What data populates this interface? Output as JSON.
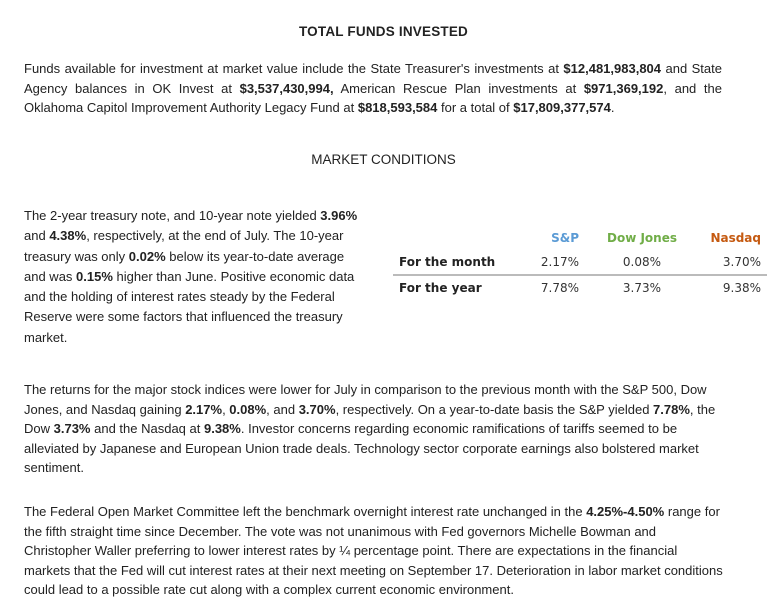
{
  "title": "TOTAL FUNDS INVESTED",
  "funds": [
    "Funds available for investment at market value include the State Treasurer's investments at ",
    "$12,481,983,804",
    " and State Agency balances in OK Invest at ",
    "$3,537,430,994,",
    " American Rescue Plan investments at ",
    "$971,369,192",
    ", and the Oklahoma Capitol Improvement Authority Legacy Fund at ",
    "$818,593,584",
    " for a total of ",
    "$17,809,377,574",
    "."
  ],
  "market_title": "MARKET CONDITIONS",
  "treasury": [
    "The 2-year treasury note, and 10-year note yielded ",
    "3.96%",
    " and ",
    "4.38%",
    ", respectively, at the end of July. The 10-year treasury was only ",
    "0.02%",
    " below its year-to-date average and was ",
    "0.15%",
    " higher than June. Positive economic data and the holding of interest rates steady by the Federal Reserve were some factors that influenced the treasury market."
  ],
  "table": {
    "headers": [
      {
        "label": "S&P",
        "color": "#5b9bd5"
      },
      {
        "label": "Dow Jones",
        "color": "#70ad47"
      },
      {
        "label": "Nasdaq",
        "color": "#c55a11"
      }
    ],
    "rows": [
      {
        "label": "For the month",
        "values": [
          "2.17%",
          "0.08%",
          "3.70%"
        ]
      },
      {
        "label": "For the year",
        "values": [
          "7.78%",
          "3.73%",
          "9.38%"
        ]
      }
    ]
  },
  "stocks": [
    "The returns for the major stock indices were lower for July in comparison to the previous month with the S&P 500, Dow Jones, and Nasdaq gaining ",
    "2.17%",
    ", ",
    "0.08%",
    ", and ",
    "3.70%",
    ", respectively. On a year-to-date basis the S&P yielded ",
    "7.78%",
    ", the Dow ",
    "3.73%",
    " and the Nasdaq at ",
    "9.38%",
    ". Investor concerns regarding economic ramifications of tariffs seemed to be alleviated by Japanese and European Union trade deals. Technology sector corporate earnings also bolstered market sentiment."
  ],
  "fed": [
    "The Federal Open Market Committee left the benchmark overnight interest rate unchanged in the ",
    "4.25%-4.50%",
    " range for the fifth straight time since December. The vote was not unanimous with Fed governors Michelle Bowman and Christopher Waller preferring to lower interest rates by ¼ percentage point. There are expectations in the financial markets that the Fed will cut interest rates at their next meeting on September 17. Deterioration in labor market conditions could lead to a possible rate cut along with a complex current economic environment."
  ]
}
